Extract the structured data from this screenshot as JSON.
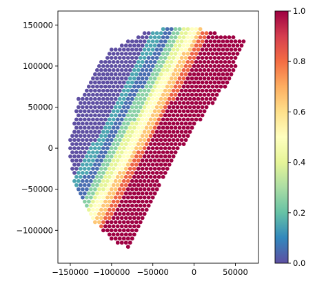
{
  "chart_data": {
    "type": "scatter",
    "title": "",
    "xlabel": "",
    "ylabel": "",
    "xlim": [
      -165000,
      78000
    ],
    "ylim": [
      -140000,
      167000
    ],
    "x_ticks": [
      -150000,
      -100000,
      -50000,
      0,
      50000
    ],
    "x_tick_labels": [
      "−150000",
      "−100000",
      "−50000",
      "0",
      "50000"
    ],
    "y_ticks": [
      -100000,
      -50000,
      0,
      50000,
      100000,
      150000
    ],
    "y_tick_labels": [
      "−100000",
      "−50000",
      "0",
      "50000",
      "100000",
      "150000"
    ],
    "grid": false,
    "colormap": "Spectral_r",
    "colorbar": {
      "min": 0.0,
      "max": 1.0,
      "ticks": [
        0.0,
        0.2,
        0.4,
        0.6,
        0.8,
        1.0
      ],
      "tick_labels": [
        "0.0",
        "0.2",
        "0.4",
        "0.6",
        "0.8",
        "1.0"
      ]
    },
    "grid_spacing": 5000,
    "point_region": {
      "description": "field of points filling a half-disc wedge",
      "vertices": [
        [
          -152000,
          0
        ],
        [
          -140000,
          60000
        ],
        [
          -105000,
          118000
        ],
        [
          -55000,
          143000
        ],
        [
          -10000,
          150000
        ],
        [
          20000,
          142000
        ],
        [
          63000,
          132000
        ],
        [
          42000,
          80000
        ],
        [
          0,
          25000
        ],
        [
          -40000,
          -40000
        ],
        [
          -70000,
          -110000
        ],
        [
          -78000,
          -123000
        ],
        [
          -95000,
          -115000
        ],
        [
          -125000,
          -85000
        ],
        [
          -145000,
          -40000
        ]
      ]
    },
    "value_bands": [
      {
        "offset_max": -75000,
        "value": 0.0
      },
      {
        "offset_max": -65000,
        "value": 0.15
      },
      {
        "offset_max": -55000,
        "value": 0.05
      },
      {
        "offset_max": -45000,
        "value": 0.25
      },
      {
        "offset_max": -38000,
        "value": 0.4
      },
      {
        "offset_max": -30000,
        "value": 0.5
      },
      {
        "offset_max": -22000,
        "value": 0.65
      },
      {
        "offset_max": -15000,
        "value": 0.82
      },
      {
        "offset_max": 999999,
        "value": 1.0
      }
    ],
    "band_axis": {
      "origin": [
        -40000,
        0
      ],
      "direction": [
        0.88,
        -0.47
      ]
    }
  }
}
